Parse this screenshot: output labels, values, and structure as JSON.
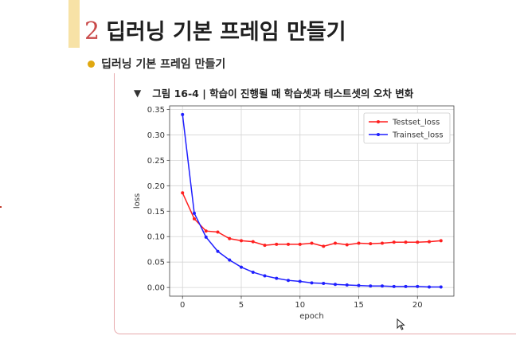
{
  "slide": {
    "section_number": "2",
    "section_title": "딥러닝 기본 프레임 만들기",
    "bullet_text": "딥러닝 기본 프레임 만들기",
    "figure_caption": "그림 16-4 | 학습이 진행될 때 학습셋과 테스트셋의 오차 변화"
  },
  "icons": {
    "caption_marker": "triangle-down-icon",
    "bullet": "bullet-dot-icon",
    "cursor": "mouse-pointer-icon"
  },
  "colors": {
    "accent": "#f7e2a6",
    "section_number": "#c94a4a",
    "bullet": "#e0a810",
    "frame": "#e7a9ac",
    "testset": "#ff1f1f",
    "trainset": "#1f1fff"
  },
  "chart_data": {
    "type": "line",
    "title": "",
    "xlabel": "epoch",
    "ylabel": "loss",
    "xlim": [
      -1.1,
      23.1
    ],
    "ylim": [
      -0.017,
      0.357
    ],
    "xticks": [
      0,
      5,
      10,
      15,
      20
    ],
    "xtick_labels": [
      "0",
      "5",
      "10",
      "15",
      "20"
    ],
    "yticks": [
      0.0,
      0.05,
      0.1,
      0.15,
      0.2,
      0.25,
      0.3,
      0.35
    ],
    "ytick_labels": [
      "0.00",
      "0.05",
      "0.10",
      "0.15",
      "0.20",
      "0.25",
      "0.30",
      "0.35"
    ],
    "grid": true,
    "legend_position": "top-right",
    "x": [
      0,
      1,
      2,
      3,
      4,
      5,
      6,
      7,
      8,
      9,
      10,
      11,
      12,
      13,
      14,
      15,
      16,
      17,
      18,
      19,
      20,
      21,
      22
    ],
    "series": [
      {
        "name": "Testset_loss",
        "color": "#ff1f1f",
        "values": [
          0.186,
          0.135,
          0.111,
          0.109,
          0.096,
          0.092,
          0.09,
          0.083,
          0.085,
          0.085,
          0.085,
          0.087,
          0.081,
          0.087,
          0.084,
          0.087,
          0.086,
          0.087,
          0.089,
          0.089,
          0.089,
          0.09,
          0.092
        ]
      },
      {
        "name": "Trainset_loss",
        "color": "#1f1fff",
        "values": [
          0.34,
          0.146,
          0.099,
          0.071,
          0.054,
          0.04,
          0.03,
          0.023,
          0.018,
          0.014,
          0.012,
          0.009,
          0.008,
          0.006,
          0.005,
          0.004,
          0.003,
          0.003,
          0.002,
          0.002,
          0.002,
          0.001,
          0.001
        ]
      }
    ]
  }
}
